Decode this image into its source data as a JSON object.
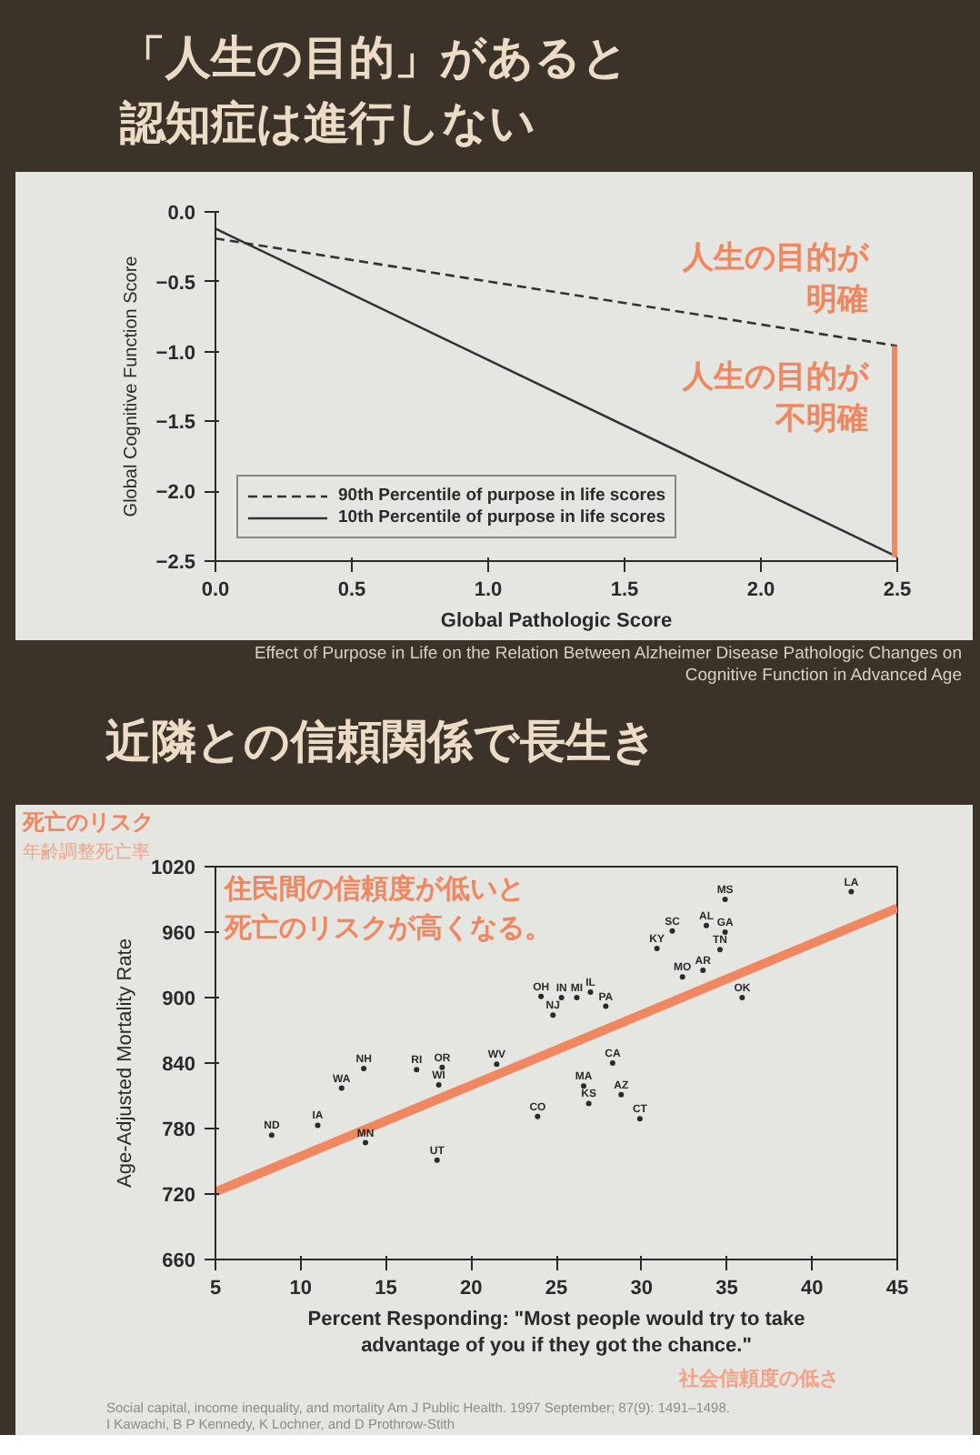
{
  "chart_data": [
    {
      "type": "line",
      "title": "「人生の目的」があると認知症は進行しない",
      "xlabel": "Global Pathologic Score",
      "ylabel": "Global Cognitive Function Score",
      "x": [
        0,
        2.5
      ],
      "series": [
        {
          "name": "90th Percentile of purpose in life scores",
          "color": "#333333",
          "values": [
            -0.19,
            -0.96
          ],
          "line_style": "dashed"
        },
        {
          "name": "10th Percentile of purpose in life scores",
          "color": "#333333",
          "values": [
            -0.12,
            -2.47
          ],
          "line_style": "solid"
        }
      ],
      "xlim": [
        0,
        2.5
      ],
      "ylim": [
        -2.5,
        0
      ],
      "xticks": [
        {
          "value": 0,
          "label": "0.0"
        },
        {
          "value": 0.5,
          "label": "0.5"
        },
        {
          "value": 1,
          "label": "1.0"
        },
        {
          "value": 1.5,
          "label": "1.5"
        },
        {
          "value": 2,
          "label": "2.0"
        },
        {
          "value": 2.5,
          "label": "2.5"
        }
      ],
      "yticks": [
        {
          "value": 0,
          "label": "0.0"
        },
        {
          "value": -0.5,
          "label": "−0.5"
        },
        {
          "value": -1,
          "label": "−1.0"
        },
        {
          "value": -1.5,
          "label": "−1.5"
        },
        {
          "value": -2,
          "label": "−2.0"
        },
        {
          "value": -2.5,
          "label": "−2.5"
        }
      ],
      "legend": "bottom left",
      "annotations": [
        {
          "text": "人生の目的が明確",
          "x": 2.5,
          "y": -0.96
        },
        "人生の目的が不明確",
        "Effect of Purpose in Life on the Relation Between Alzheimer Disease Pathologic Changes on\nCognitive Function in Advanced Age"
      ]
    },
    {
      "type": "scatter",
      "title": "近隣との信頼関係で長生き",
      "xlabel": "Percent Responding: \"Most people would try to take\nadvantage of you if they got the chance.\"",
      "ylabel": "Age-Adjusted Mortality Rate",
      "xlim": [
        5,
        45
      ],
      "ylim": [
        660,
        1020
      ],
      "xticks": [
        5,
        10,
        15,
        20,
        25,
        30,
        35,
        40,
        45
      ],
      "yticks": [
        660,
        720,
        780,
        840,
        900,
        960,
        1020
      ],
      "series": [
        {
          "type": "scatter",
          "color": "#2a2a2a",
          "marker": "circle",
          "x": [
            8.3,
            11.0,
            12.4,
            13.7,
            13.8,
            16.8,
            18.3,
            18.1,
            18.0,
            21.5,
            23.9,
            24.1,
            24.8,
            25.3,
            26.2,
            27.0,
            27.9,
            26.6,
            26.9,
            28.3,
            28.8,
            29.9,
            30.9,
            31.8,
            32.4,
            33.6,
            33.8,
            34.9,
            34.6,
            34.9,
            35.9,
            42.3
          ],
          "values": [
            774,
            783,
            817,
            835,
            767,
            834,
            836,
            820,
            751,
            839,
            791,
            901,
            884,
            900,
            900,
            905,
            892,
            819,
            803,
            840,
            811,
            789,
            945,
            961,
            919,
            925,
            966,
            960,
            944,
            990,
            900,
            997
          ],
          "value_labels": [
            "ND",
            "IA",
            "WA",
            "NH",
            "MN",
            "RI",
            "OR",
            "WI",
            "UT",
            "WV",
            "CO",
            "OH",
            "NJ",
            "IN",
            "MI",
            "IL",
            "PA",
            "MA",
            "KS",
            "CA",
            "AZ",
            "CT",
            "KY",
            "SC",
            "MO",
            "AR",
            "AL",
            "GA",
            "TN",
            "MS",
            "OK",
            "LA"
          ]
        },
        {
          "type": "line",
          "color": "#ef8760",
          "x": [
            5,
            45
          ],
          "values": [
            722,
            982
          ]
        }
      ],
      "annotations": [
        "住民間の信頼度が低いと死亡のリスクが高くなる。",
        "死亡のリスク",
        "年齢調整死亡率",
        "社会信頼度の低さ",
        "Social capital, income inequality, and mortality Am J Public Health. 1997 September; 87(9): 1491–1498.\nI Kawachi, B P Kennedy, K Lochner, and D Prothrow-Stith"
      ]
    }
  ]
}
